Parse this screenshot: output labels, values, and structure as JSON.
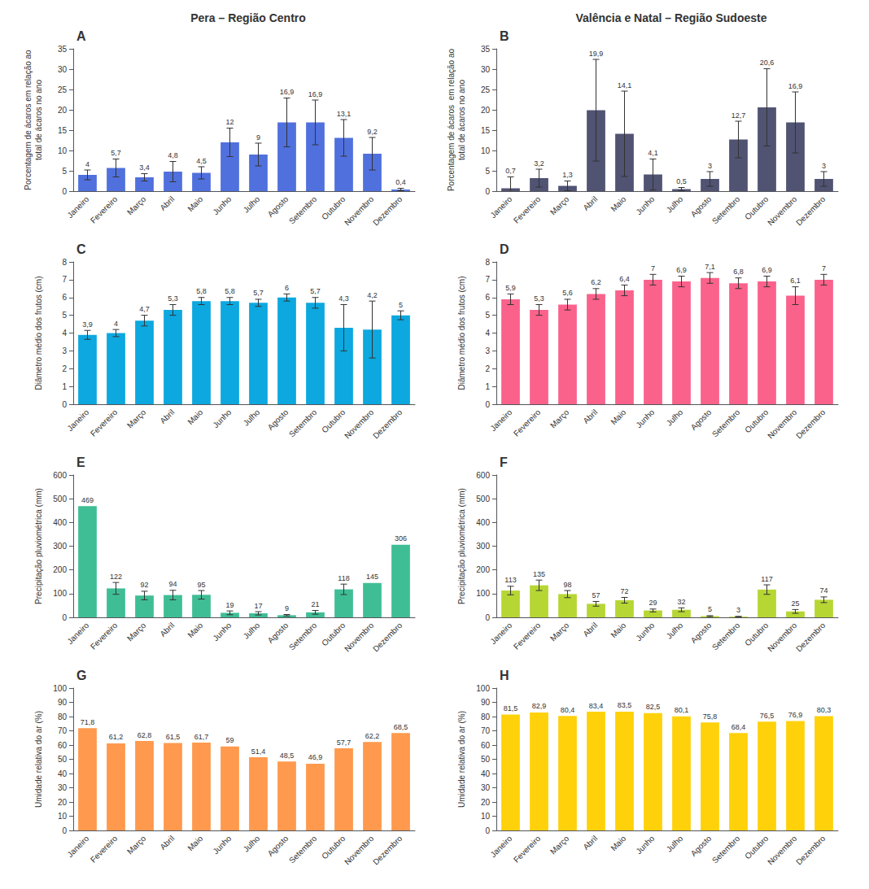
{
  "chart_data": [
    {
      "type": "bar",
      "title": "Pera – Região Centro",
      "annotations": [
        "A"
      ],
      "categories": [
        "Janeiro",
        "Fevereiro",
        "Março",
        "Abril",
        "Maio",
        "Junho",
        "Julho",
        "Agosto",
        "Setembro",
        "Outubro",
        "Novembro",
        "Dezembro"
      ],
      "values": [
        4.0,
        5.7,
        3.4,
        4.8,
        4.5,
        12.0,
        9.0,
        16.9,
        16.9,
        13.1,
        9.2,
        0.4
      ],
      "value_labels": [
        "4",
        "5,7",
        "3,4",
        "4,8",
        "4,5",
        "12",
        "9",
        "16,9",
        "16,9",
        "13,1",
        "9,2",
        "0,4"
      ],
      "errors": [
        1.2,
        2.2,
        0.9,
        2.5,
        1.5,
        3.5,
        2.8,
        6.0,
        5.5,
        4.5,
        4.0,
        0.3
      ],
      "ylabel": "Porcentagem de ácaros em relação ao\ntotal de ácaros no ano",
      "ylim": [
        0,
        35
      ],
      "yticks": [
        0,
        5,
        10,
        15,
        20,
        25,
        30,
        35
      ],
      "grid": false,
      "data_labels": true
    },
    {
      "type": "bar",
      "title": "Valência e Natal – Região Sudoeste",
      "annotations": [
        "B"
      ],
      "categories": [
        "Janeiro",
        "Fevereiro",
        "Março",
        "Abril",
        "Maio",
        "Junho",
        "Julho",
        "Agosto",
        "Setembro",
        "Outubro",
        "Novembro",
        "Dezembro"
      ],
      "values": [
        0.7,
        3.2,
        1.3,
        19.9,
        14.1,
        4.1,
        0.5,
        3.0,
        12.7,
        20.6,
        16.9,
        3.0
      ],
      "value_labels": [
        "0,7",
        "3,2",
        "1,3",
        "19,9",
        "14,1",
        "4,1",
        "0,5",
        "3",
        "12,7",
        "20,6",
        "16,9",
        "3"
      ],
      "errors": [
        2.8,
        2.2,
        1.2,
        12.5,
        10.5,
        3.8,
        0.4,
        1.8,
        4.5,
        9.5,
        7.5,
        1.8
      ],
      "ylabel": "Porcentagem de ácaros  em relação ao\ntotal de ácaros no ano",
      "ylim": [
        0,
        35
      ],
      "yticks": [
        0,
        5,
        10,
        15,
        20,
        25,
        30,
        35
      ],
      "grid": false,
      "data_labels": true
    },
    {
      "type": "bar",
      "annotations": [
        "C"
      ],
      "categories": [
        "Janeiro",
        "Fevereiro",
        "Março",
        "Abril",
        "Maio",
        "Junho",
        "Julho",
        "Agosto",
        "Setembro",
        "Outubro",
        "Novembro",
        "Dezembro"
      ],
      "values": [
        3.9,
        4.0,
        4.7,
        5.3,
        5.8,
        5.8,
        5.7,
        6.0,
        5.7,
        4.3,
        4.2,
        5.0
      ],
      "value_labels": [
        "3,9",
        "4",
        "4,7",
        "5,3",
        "5,8",
        "5,8",
        "5,7",
        "6",
        "5,7",
        "4,3",
        "4,2",
        "5"
      ],
      "errors": [
        0.25,
        0.2,
        0.3,
        0.3,
        0.2,
        0.2,
        0.2,
        0.2,
        0.3,
        1.3,
        1.6,
        0.25
      ],
      "ylabel": "Diâmetro médio dos frutos (cm)",
      "ylim": [
        0,
        8
      ],
      "yticks": [
        0,
        1,
        2,
        3,
        4,
        5,
        6,
        7,
        8
      ],
      "grid": false,
      "data_labels": true
    },
    {
      "type": "bar",
      "annotations": [
        "D"
      ],
      "categories": [
        "Janeiro",
        "Fevereiro",
        "Março",
        "Abril",
        "Maio",
        "Junho",
        "Julho",
        "Agosto",
        "Setembro",
        "Outubro",
        "Novembro",
        "Dezembro"
      ],
      "values": [
        5.9,
        5.3,
        5.6,
        6.2,
        6.4,
        7.0,
        6.9,
        7.1,
        6.8,
        6.9,
        6.1,
        7.0
      ],
      "value_labels": [
        "5,9",
        "5,3",
        "5,6",
        "6,2",
        "6,4",
        "7",
        "6,9",
        "7,1",
        "6,8",
        "6,9",
        "6,1",
        "7"
      ],
      "errors": [
        0.3,
        0.3,
        0.3,
        0.3,
        0.3,
        0.3,
        0.3,
        0.3,
        0.3,
        0.3,
        0.5,
        0.3
      ],
      "ylabel": "Diâmetro médio dos frutos (cm)",
      "ylim": [
        0,
        8
      ],
      "yticks": [
        0,
        1,
        2,
        3,
        4,
        5,
        6,
        7,
        8
      ],
      "grid": false,
      "data_labels": true
    },
    {
      "type": "bar",
      "annotations": [
        "E"
      ],
      "categories": [
        "Janeiro",
        "Fevereiro",
        "Março",
        "Abril",
        "Maio",
        "Junho",
        "Julho",
        "Agosto",
        "Setembro",
        "Outubro",
        "Novembro",
        "Dezembro"
      ],
      "values": [
        469,
        122,
        92,
        94,
        95,
        19,
        17,
        9,
        21,
        118,
        145,
        306
      ],
      "errors": [
        0,
        25,
        18,
        20,
        18,
        8,
        7,
        3,
        8,
        22,
        0,
        0
      ],
      "ylabel": "Precipitação pluviométrica (mm)",
      "ylim": [
        0,
        600
      ],
      "yticks": [
        0,
        100,
        200,
        300,
        400,
        500,
        600
      ],
      "grid": false,
      "data_labels": true
    },
    {
      "type": "bar",
      "annotations": [
        "F"
      ],
      "categories": [
        "Janeiro",
        "Fevereiro",
        "Março",
        "Abril",
        "Maio",
        "Junho",
        "Julho",
        "Agosto",
        "Setembro",
        "Outubro",
        "Novembro",
        "Dezembro"
      ],
      "values": [
        113,
        135,
        98,
        57,
        72,
        29,
        32,
        5,
        3,
        117,
        25,
        74
      ],
      "errors": [
        18,
        22,
        15,
        10,
        12,
        6,
        8,
        2,
        1,
        20,
        8,
        12
      ],
      "ylabel": "Precipitação pluviométrica (mm)",
      "ylim": [
        0,
        600
      ],
      "yticks": [
        0,
        100,
        200,
        300,
        400,
        500,
        600
      ],
      "grid": false,
      "data_labels": true
    },
    {
      "type": "bar",
      "annotations": [
        "G"
      ],
      "categories": [
        "Janeiro",
        "Fevereiro",
        "Março",
        "Abril",
        "Maio",
        "Junho",
        "Julho",
        "Agosto",
        "Setembro",
        "Outubro",
        "Novembro",
        "Dezembro"
      ],
      "values": [
        71.8,
        61.2,
        62.8,
        61.5,
        61.7,
        59.0,
        51.4,
        48.5,
        46.9,
        57.7,
        62.2,
        68.5
      ],
      "value_labels": [
        "71,8",
        "61,2",
        "62,8",
        "61,5",
        "61,7",
        "59",
        "51,4",
        "48,5",
        "46,9",
        "57,7",
        "62,2",
        "68,5"
      ],
      "errors": [
        0,
        0,
        0,
        0,
        0,
        0,
        0,
        0,
        0,
        0,
        0,
        0
      ],
      "ylabel": "Umidade relativa do ar (%)",
      "ylim": [
        0,
        100
      ],
      "yticks": [
        0,
        10,
        20,
        30,
        40,
        50,
        60,
        70,
        80,
        90,
        100
      ],
      "grid": false,
      "data_labels": true
    },
    {
      "type": "bar",
      "annotations": [
        "H"
      ],
      "categories": [
        "Janeiro",
        "Fevereiro",
        "Março",
        "Abril",
        "Maio",
        "Junho",
        "Julho",
        "Agosto",
        "Setembro",
        "Outubro",
        "Novembro",
        "Dezembro"
      ],
      "values": [
        81.5,
        82.9,
        80.4,
        83.4,
        83.5,
        82.5,
        80.1,
        75.8,
        68.4,
        76.5,
        76.9,
        80.3
      ],
      "value_labels": [
        "81,5",
        "82,9",
        "80,4",
        "83,4",
        "83,5",
        "82,5",
        "80,1",
        "75,8",
        "68,4",
        "76,5",
        "76,9",
        "80,3"
      ],
      "errors": [
        0,
        0,
        0,
        0,
        0,
        0,
        0,
        0,
        0,
        0,
        0,
        0
      ],
      "ylabel": "Umidade relativa do ar (%)",
      "ylim": [
        0,
        100
      ],
      "yticks": [
        0,
        10,
        20,
        30,
        40,
        50,
        60,
        70,
        80,
        90,
        100
      ],
      "grid": false,
      "data_labels": true
    }
  ]
}
